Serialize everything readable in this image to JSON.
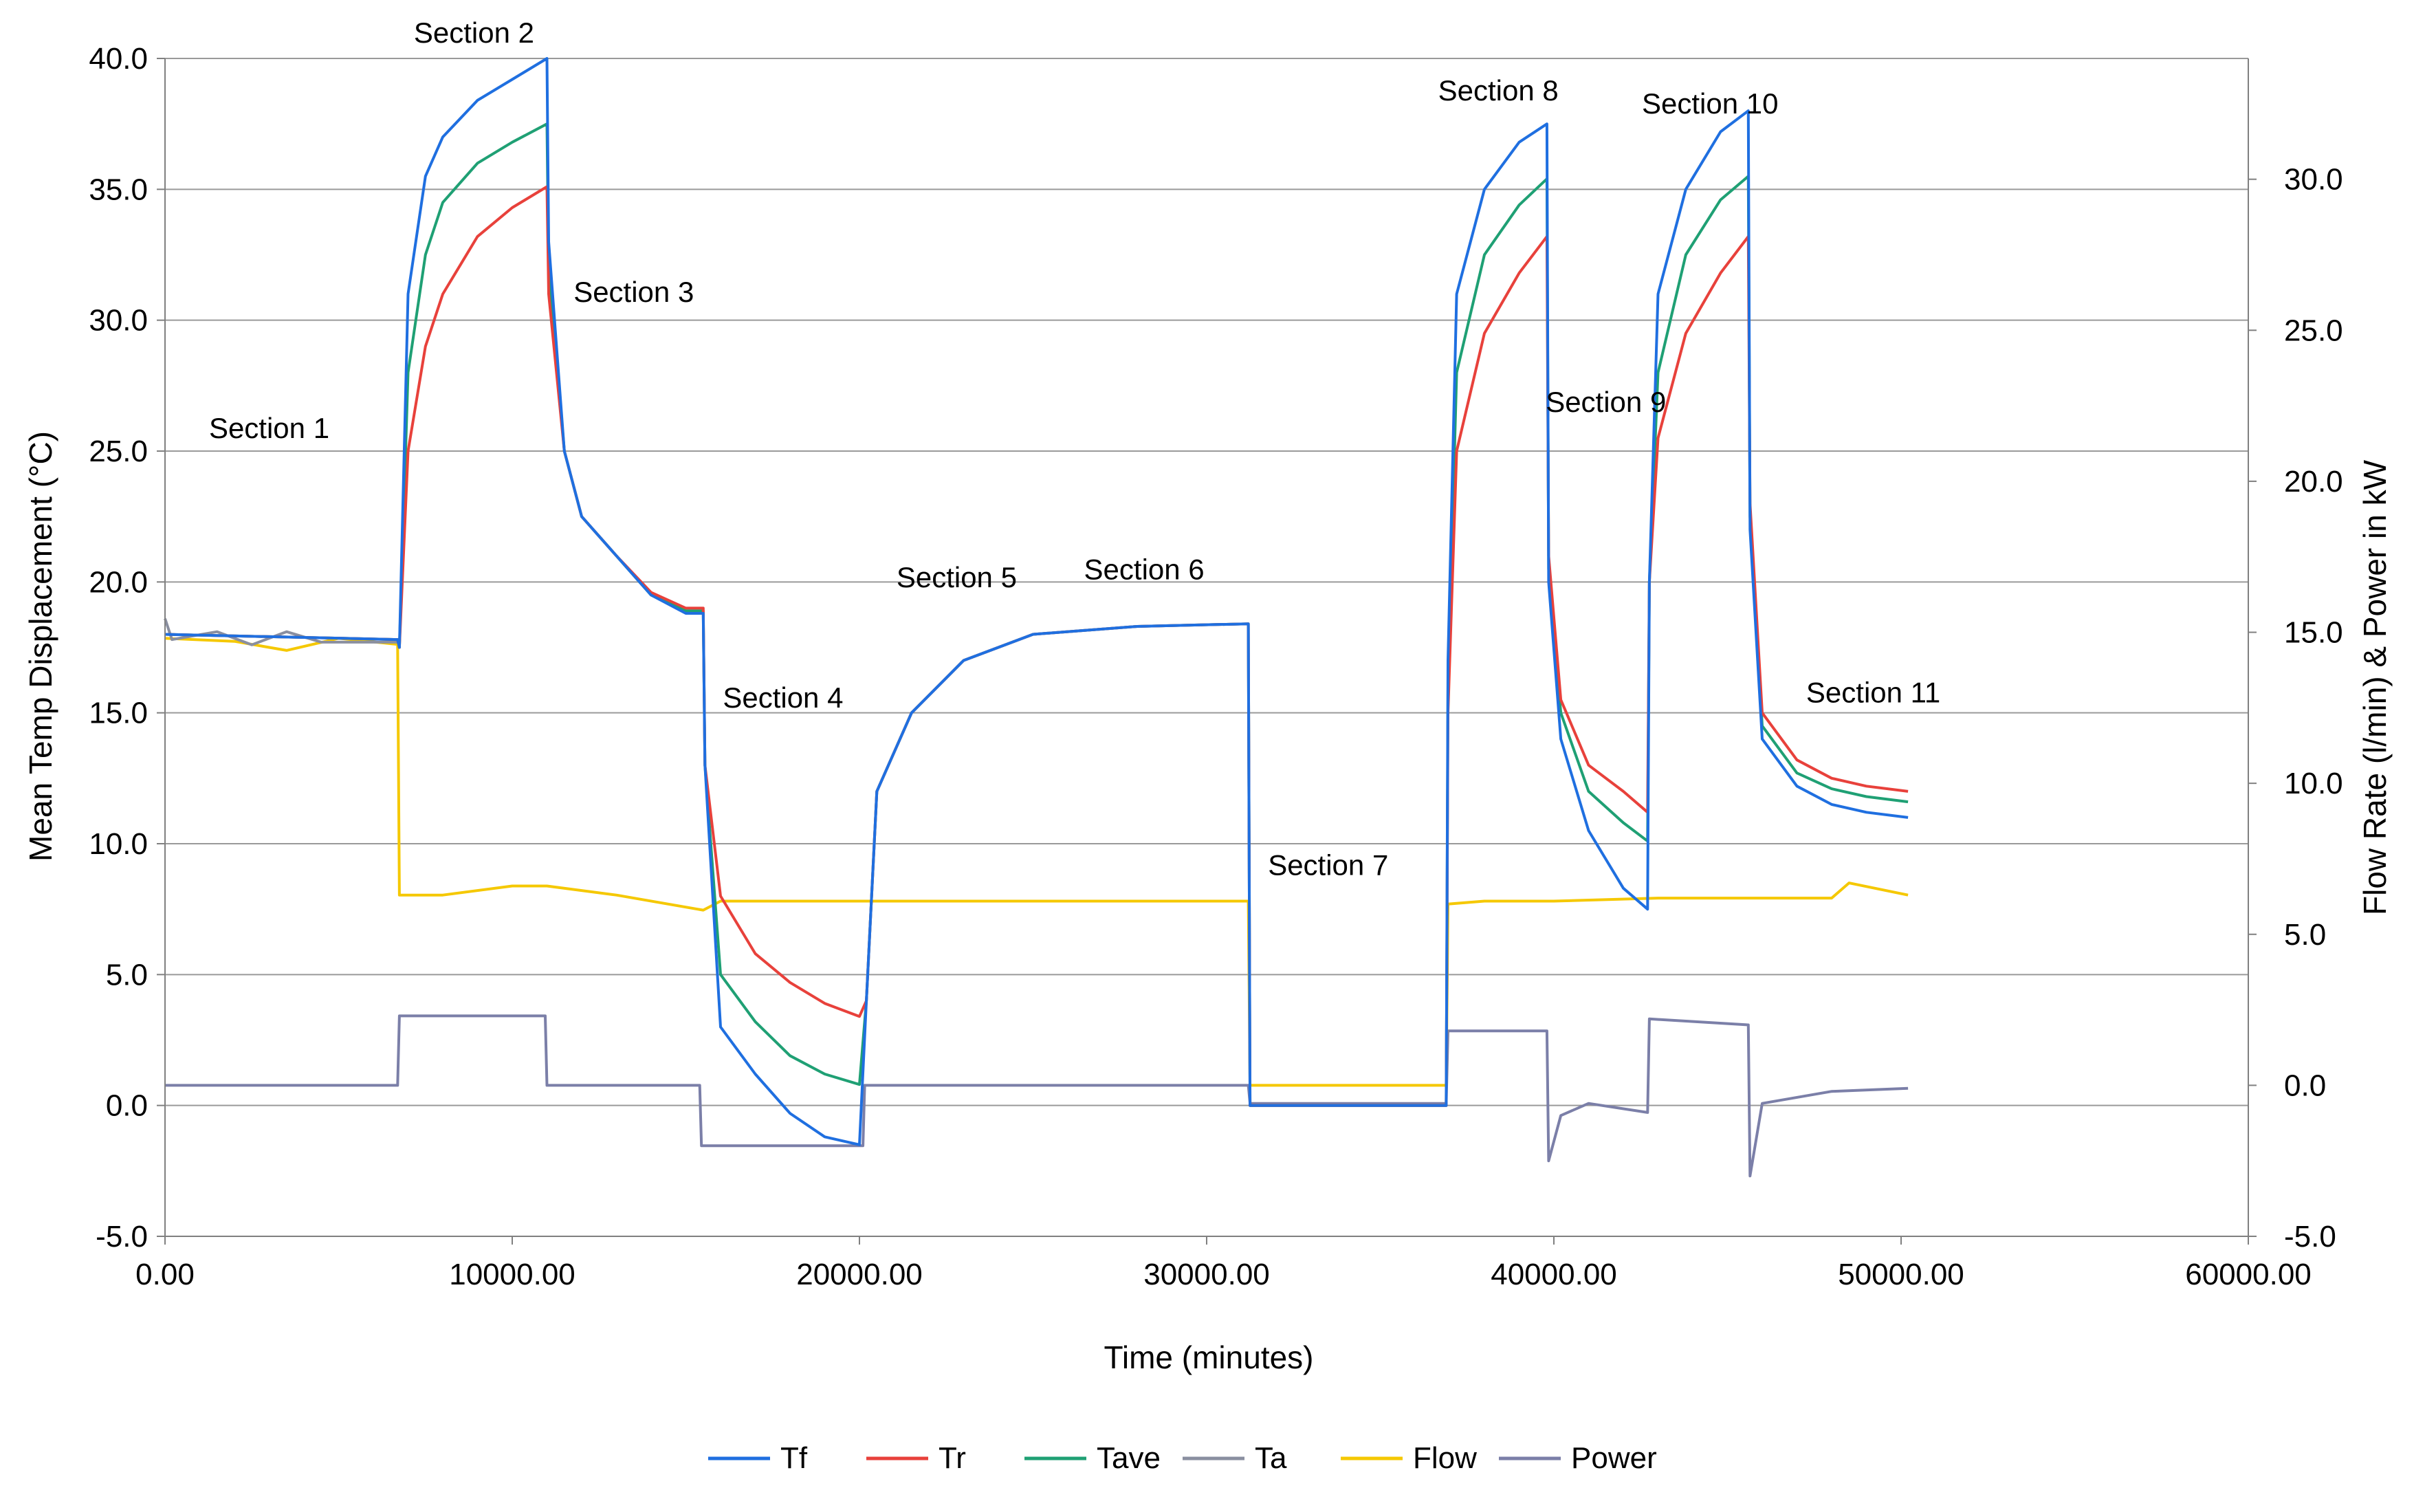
{
  "chart_data": {
    "type": "line",
    "title": "",
    "xlabel": "Time (minutes)",
    "ylabel": "Mean Temp Displacement (°C)",
    "y2label": "Flow Rate (l/min) & Power in kW",
    "xlim": [
      0,
      60000
    ],
    "ylim": [
      -5,
      40
    ],
    "y2lim": [
      -5,
      34
    ],
    "x_ticks": [
      "0.00",
      "10000.00",
      "20000.00",
      "30000.00",
      "40000.00",
      "50000.00",
      "60000.00"
    ],
    "x_tick_values": [
      0,
      10000,
      20000,
      30000,
      40000,
      50000,
      60000
    ],
    "y_ticks": [
      "40.0",
      "35.0",
      "30.0",
      "25.0",
      "20.0",
      "15.0",
      "10.0",
      "5.0",
      "0.0",
      "-5.0"
    ],
    "y_tick_values": [
      40,
      35,
      30,
      25,
      20,
      15,
      10,
      5,
      0,
      -5
    ],
    "y2_ticks": [
      "30.0",
      "25.0",
      "20.0",
      "15.0",
      "10.0",
      "5.0",
      "0.0",
      "-5.0"
    ],
    "y2_tick_values": [
      30,
      25,
      20,
      15,
      10,
      5,
      0,
      -5
    ],
    "grid": "horizontal",
    "legend_position": "bottom",
    "series": [
      {
        "name": "Tf",
        "color": "#1f6fe0",
        "axis": "left",
        "x": [
          0,
          6700,
          6750,
          7000,
          7500,
          8000,
          9000,
          10000,
          11000,
          11050,
          11500,
          12000,
          13000,
          14000,
          15000,
          15500,
          15550,
          16000,
          17000,
          18000,
          19000,
          20000,
          20200,
          20500,
          21500,
          23000,
          25000,
          28000,
          31200,
          31250,
          36900,
          36950,
          37200,
          38000,
          39000,
          39800,
          39850,
          40200,
          41000,
          42000,
          42700,
          42750,
          43000,
          43800,
          44800,
          45600,
          45650,
          46000,
          47000,
          48000,
          49000,
          50200
        ],
        "y": [
          18,
          17.8,
          17.5,
          31,
          35.5,
          37,
          38.4,
          39.2,
          40,
          33,
          25,
          22.5,
          21,
          19.5,
          18.8,
          18.8,
          13,
          3,
          1.2,
          -0.3,
          -1.2,
          -1.5,
          4,
          12,
          15,
          17,
          18,
          18.3,
          18.4,
          0,
          0,
          17,
          31,
          35,
          36.8,
          37.5,
          20,
          14,
          10.5,
          8.3,
          7.5,
          20,
          31,
          35,
          37.2,
          38,
          22,
          14,
          12.2,
          11.5,
          11.2,
          11
        ]
      },
      {
        "name": "Tr",
        "color": "#e8413b",
        "axis": "left",
        "x": [
          0,
          6700,
          6750,
          7000,
          7500,
          8000,
          9000,
          10000,
          11000,
          11050,
          11500,
          12000,
          13000,
          14000,
          15000,
          15500,
          15550,
          16000,
          17000,
          18000,
          19000,
          20000,
          20200,
          20500,
          21500,
          23000,
          25000,
          28000,
          31200,
          31250,
          36900,
          36950,
          37200,
          38000,
          39000,
          39800,
          39850,
          40200,
          41000,
          42000,
          42700,
          42750,
          43000,
          43800,
          44800,
          45600,
          45650,
          46000,
          47000,
          48000,
          49000,
          50200
        ],
        "y": [
          18,
          17.8,
          17.5,
          25,
          29,
          31,
          33.2,
          34.3,
          35.1,
          31,
          25,
          22.5,
          21,
          19.6,
          19,
          19,
          13,
          8,
          5.8,
          4.7,
          3.9,
          3.4,
          4,
          12,
          15,
          17,
          18,
          18.3,
          18.4,
          0,
          0,
          15,
          25,
          29.5,
          31.8,
          33.2,
          21,
          15.5,
          13,
          12,
          11.2,
          20,
          25.5,
          29.5,
          31.8,
          33.2,
          23,
          15,
          13.2,
          12.5,
          12.2,
          12
        ]
      },
      {
        "name": "Tave",
        "color": "#1fa074",
        "axis": "left",
        "x": [
          0,
          6700,
          6750,
          7000,
          7500,
          8000,
          9000,
          10000,
          11000,
          11050,
          11500,
          12000,
          13000,
          14000,
          15000,
          15500,
          15550,
          16000,
          17000,
          18000,
          19000,
          20000,
          20200,
          20500,
          21500,
          23000,
          25000,
          28000,
          31200,
          31250,
          36900,
          36950,
          37200,
          38000,
          39000,
          39800,
          39850,
          40200,
          41000,
          42000,
          42700,
          42750,
          43000,
          43800,
          44800,
          45600,
          45650,
          46000,
          47000,
          48000,
          49000,
          50200
        ],
        "y": [
          18,
          17.8,
          17.5,
          28,
          32.5,
          34.5,
          36,
          36.8,
          37.5,
          32,
          25,
          22.5,
          21,
          19.5,
          18.9,
          18.9,
          13,
          5,
          3.2,
          1.9,
          1.2,
          0.8,
          4,
          12,
          15,
          17,
          18,
          18.3,
          18.4,
          0,
          0,
          16,
          28,
          32.5,
          34.4,
          35.4,
          20.5,
          15,
          12,
          10.8,
          10.1,
          20,
          28,
          32.5,
          34.6,
          35.5,
          22.5,
          14.5,
          12.7,
          12.1,
          11.8,
          11.6
        ]
      },
      {
        "name": "Ta",
        "color": "#8a8fa0",
        "axis": "left",
        "x": [
          0,
          200,
          1500,
          2500,
          3500,
          4500,
          6700
        ],
        "y": [
          18.6,
          17.8,
          18.1,
          17.6,
          18.1,
          17.7,
          17.7
        ]
      },
      {
        "name": "Flow",
        "color": "#f5c800",
        "axis": "right",
        "x": [
          0,
          2000,
          3500,
          5000,
          6700,
          6750,
          8000,
          10000,
          11000,
          13000,
          15500,
          16000,
          18000,
          20000,
          25000,
          31200,
          31250,
          36900,
          36950,
          38000,
          40000,
          43000,
          46000,
          48000,
          48500,
          50200
        ],
        "y": [
          14.8,
          14.7,
          14.4,
          14.8,
          14.6,
          6.3,
          6.3,
          6.6,
          6.6,
          6.3,
          5.8,
          6.1,
          6.1,
          6.1,
          6.1,
          6.1,
          0,
          0,
          6,
          6.1,
          6.1,
          6.2,
          6.2,
          6.2,
          6.7,
          6.3
        ]
      },
      {
        "name": "Power",
        "color": "#7b7fa8",
        "axis": "right",
        "x": [
          0,
          6700,
          6750,
          10950,
          11000,
          15400,
          15450,
          20100,
          20150,
          31200,
          31250,
          36900,
          36950,
          39800,
          39850,
          40200,
          41000,
          42700,
          42750,
          45600,
          45650,
          46000,
          48000,
          50200
        ],
        "y": [
          0,
          0,
          2.3,
          2.3,
          0,
          0,
          -2,
          -2,
          0,
          0,
          -0.6,
          -0.6,
          1.8,
          1.8,
          -2.5,
          -1,
          -0.6,
          -0.9,
          2.2,
          2,
          -3,
          -0.6,
          -0.2,
          -0.1
        ]
      }
    ],
    "annotations": [
      {
        "text": "Section 1",
        "x": 3000,
        "y": 25.5
      },
      {
        "text": "Section 2",
        "x": 8900,
        "y": 40.6
      },
      {
        "text": "Section 3",
        "x": 13500,
        "y": 30.7
      },
      {
        "text": "Section 4",
        "x": 17800,
        "y": 15.2
      },
      {
        "text": "Section 5",
        "x": 22800,
        "y": 19.8
      },
      {
        "text": "Section 6",
        "x": 28200,
        "y": 20.1
      },
      {
        "text": "Section 7",
        "x": 33500,
        "y": 8.8
      },
      {
        "text": "Section 8",
        "x": 38400,
        "y": 38.4
      },
      {
        "text": "Section 9",
        "x": 41500,
        "y": 26.5
      },
      {
        "text": "Section 10",
        "x": 44500,
        "y": 37.9
      },
      {
        "text": "Section 11",
        "x": 49200,
        "y": 15.4
      }
    ]
  }
}
